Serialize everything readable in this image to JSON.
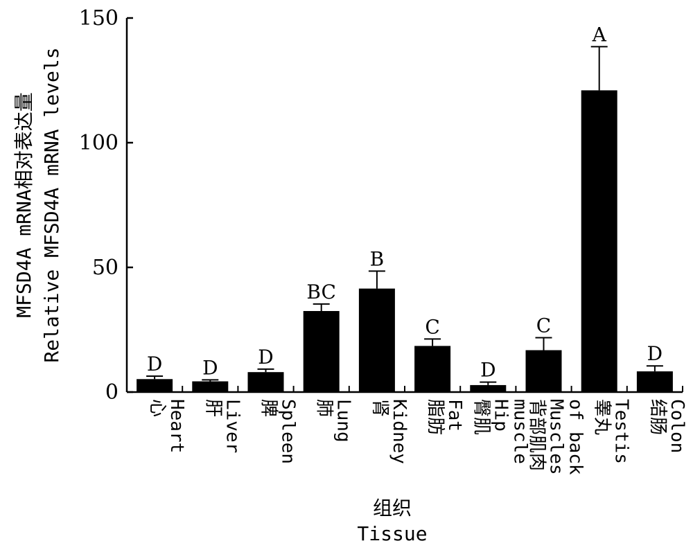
{
  "chart_data": {
    "type": "bar",
    "categories": [
      [
        "心",
        "Heart"
      ],
      [
        "肝",
        "Liver"
      ],
      [
        "脾",
        "Spleen"
      ],
      [
        "肺",
        "Lung"
      ],
      [
        "肾",
        "Kidney"
      ],
      [
        "脂肪",
        "Fat"
      ],
      [
        "臀肌",
        "Hip",
        "muscle"
      ],
      [
        "背部肌肉",
        "Muscles",
        "of back"
      ],
      [
        "睾丸",
        "Testis"
      ],
      [
        "结肠",
        "Colon"
      ]
    ],
    "values": [
      5.2,
      4.3,
      8.0,
      32.5,
      41.5,
      18.5,
      2.8,
      16.8,
      121.0,
      8.3
    ],
    "errors": [
      1.2,
      0.6,
      1.2,
      2.8,
      7.0,
      2.8,
      1.2,
      5.0,
      17.5,
      2.2
    ],
    "significance": [
      "D",
      "D",
      "D",
      "BC",
      "B",
      "C",
      "D",
      "C",
      "A",
      "D"
    ],
    "ylim": [
      0,
      150
    ],
    "yticks": [
      0,
      50,
      100,
      150
    ],
    "xlabel_cn": "组织",
    "xlabel_en": "Tissue",
    "ylabel_cn": "MFSD4A mRNA相对表达量",
    "ylabel_en": "Relative MFSD4A mRNA levels",
    "bar_color": "#000000"
  }
}
